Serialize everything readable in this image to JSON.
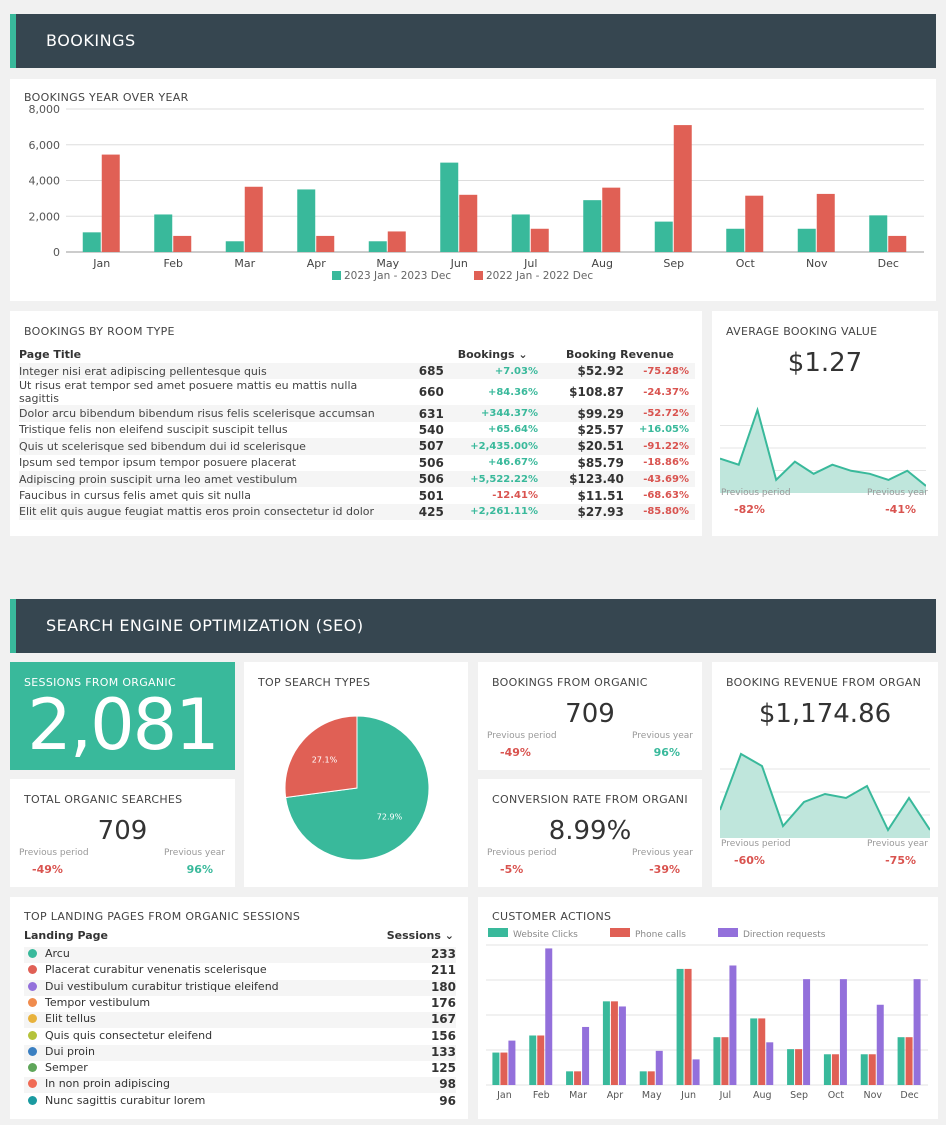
{
  "bookings_section": {
    "title": "BOOKINGS"
  },
  "seo_section": {
    "title": "SEARCH ENGINE OPTIMIZATION (SEO)"
  },
  "yoy": {
    "title": "BOOKINGS YEAR OVER YEAR"
  },
  "chart_data": [
    {
      "type": "bar",
      "title": "BOOKINGS YEAR OVER YEAR",
      "categories": [
        "Jan",
        "Feb",
        "Mar",
        "Apr",
        "May",
        "Jun",
        "Jul",
        "Aug",
        "Sep",
        "Oct",
        "Nov",
        "Dec"
      ],
      "series": [
        {
          "name": "2023 Jan - 2023 Dec",
          "color": "#39b99b",
          "values": [
            1100,
            2100,
            600,
            3500,
            600,
            5000,
            2100,
            2900,
            1700,
            1300,
            1300,
            2050
          ]
        },
        {
          "name": "2022 Jan - 2022 Dec",
          "color": "#e06055",
          "values": [
            5450,
            900,
            3650,
            900,
            1150,
            3200,
            1300,
            3600,
            7100,
            3150,
            3250,
            900
          ]
        }
      ],
      "yticks": [
        "0",
        "2,000",
        "4,000",
        "6,000",
        "8,000"
      ],
      "ylim": [
        0,
        8000
      ],
      "legend": "bottom"
    },
    {
      "type": "pie",
      "title": "TOP SEARCH TYPES",
      "values": [
        72.9,
        27.1
      ],
      "labels": [
        "72.9%",
        "27.1%"
      ],
      "colors": [
        "#39b99b",
        "#e06055"
      ]
    },
    {
      "type": "area",
      "title": "AVERAGE BOOKING VALUE",
      "values": [
        1.0,
        0.8,
        2.6,
        0.3,
        0.9,
        0.5,
        0.8,
        0.6,
        0.5,
        0.3,
        0.6,
        0.1
      ]
    },
    {
      "type": "area",
      "title": "BOOKING REVENUE FROM ORGANIC",
      "values": [
        0.3,
        1.0,
        0.85,
        0.1,
        0.4,
        0.5,
        0.45,
        0.6,
        0.05,
        0.45,
        0.05
      ]
    },
    {
      "type": "bar",
      "title": "CUSTOMER ACTIONS",
      "categories": [
        "Jan",
        "Feb",
        "Mar",
        "Apr",
        "May",
        "Jun",
        "Jul",
        "Aug",
        "Sep",
        "Oct",
        "Nov",
        "Dec"
      ],
      "series": [
        {
          "name": "Website Clicks",
          "color": "#39b99b",
          "values": [
            1.9,
            2.9,
            0.8,
            4.9,
            0.8,
            6.8,
            2.8,
            3.9,
            2.1,
            1.8,
            1.8,
            2.8
          ]
        },
        {
          "name": "Phone calls",
          "color": "#e06055",
          "values": [
            1.9,
            2.9,
            0.8,
            4.9,
            0.8,
            6.8,
            2.8,
            3.9,
            2.1,
            1.8,
            1.8,
            2.8
          ]
        },
        {
          "name": "Direction requests",
          "color": "#9370db",
          "values": [
            2.6,
            8.0,
            3.4,
            4.6,
            2.0,
            1.5,
            7.0,
            2.5,
            6.2,
            6.2,
            4.7,
            6.2
          ]
        }
      ],
      "legend": "top"
    }
  ],
  "room": {
    "title": "BOOKINGS BY ROOM TYPE",
    "h_page": "Page Title",
    "h_bookings": "Bookings",
    "h_revenue": "Booking Revenue",
    "rows": [
      [
        "Integer nisi erat adipiscing pellentesque quis",
        "685",
        "+7.03%",
        "$52.92",
        "-75.28%"
      ],
      [
        "Ut risus erat tempor sed amet posuere mattis eu mattis nulla sagittis",
        "660",
        "+84.36%",
        "$108.87",
        "-24.37%"
      ],
      [
        "Dolor arcu bibendum bibendum risus felis scelerisque accumsan",
        "631",
        "+344.37%",
        "$99.29",
        "-52.72%"
      ],
      [
        "Tristique felis non eleifend suscipit suscipit tellus",
        "540",
        "+65.64%",
        "$25.57",
        "+16.05%"
      ],
      [
        "Quis ut scelerisque sed bibendum dui id scelerisque",
        "507",
        "+2,435.00%",
        "$20.51",
        "-91.22%"
      ],
      [
        "Ipsum sed tempor ipsum tempor posuere placerat",
        "506",
        "+46.67%",
        "$85.79",
        "-18.86%"
      ],
      [
        "Adipiscing proin suscipit urna leo amet vestibulum",
        "506",
        "+5,522.22%",
        "$123.40",
        "-43.69%"
      ],
      [
        "Faucibus in cursus felis amet quis sit nulla",
        "501",
        "-12.41%",
        "$11.51",
        "-68.63%"
      ],
      [
        "Elit elit quis augue feugiat mattis eros proin consectetur id dolor",
        "425",
        "+2,261.11%",
        "$27.93",
        "-85.80%"
      ]
    ]
  },
  "abv": {
    "title": "AVERAGE BOOKING VALUE",
    "value": "$1.27",
    "pp": "Previous period",
    "py": "Previous year",
    "ppv": "-82%",
    "pyv": "-41%"
  },
  "sess": {
    "title": "SESSIONS FROM ORGANIC",
    "value": "2,081"
  },
  "tos": {
    "title": "TOTAL ORGANIC SEARCHES",
    "value": "709",
    "pp": "Previous period",
    "py": "Previous year",
    "ppv": "-49%",
    "pyv": "96%"
  },
  "tst": {
    "title": "TOP SEARCH TYPES"
  },
  "bfo": {
    "title": "BOOKINGS FROM ORGANIC",
    "value": "709",
    "pp": "Previous period",
    "py": "Previous year",
    "ppv": "-49%",
    "pyv": "96%"
  },
  "cro": {
    "title": "CONVERSION RATE FROM ORGANI",
    "value": "8.99%",
    "pp": "Previous period",
    "py": "Previous year",
    "ppv": "-5%",
    "pyv": "-39%"
  },
  "bro": {
    "title": "BOOKING REVENUE FROM ORGAN",
    "value": "$1,174.86",
    "pp": "Previous period",
    "py": "Previous year",
    "ppv": "-60%",
    "pyv": "-75%"
  },
  "landing": {
    "title": "TOP LANDING PAGES FROM ORGANIC SESSIONS",
    "h_page": "Landing Page",
    "h_sessions": "Sessions",
    "rows": [
      [
        "Arcu",
        "233",
        "#39b99b"
      ],
      [
        "Placerat curabitur venenatis scelerisque",
        "211",
        "#e06055"
      ],
      [
        "Dui vestibulum curabitur tristique eleifend",
        "180",
        "#9370db"
      ],
      [
        "Tempor vestibulum",
        "176",
        "#f08c4e"
      ],
      [
        "Elit tellus",
        "167",
        "#e8b23c"
      ],
      [
        "Quis quis consectetur eleifend",
        "156",
        "#b5c33b"
      ],
      [
        "Dui proin",
        "133",
        "#3a7fc1"
      ],
      [
        "Semper",
        "125",
        "#5fa65a"
      ],
      [
        "In non proin adipiscing",
        "98",
        "#f06b55"
      ],
      [
        "Nunc sagittis curabitur lorem",
        "96",
        "#1a9aa0"
      ]
    ]
  },
  "actions": {
    "title": "CUSTOMER ACTIONS"
  }
}
